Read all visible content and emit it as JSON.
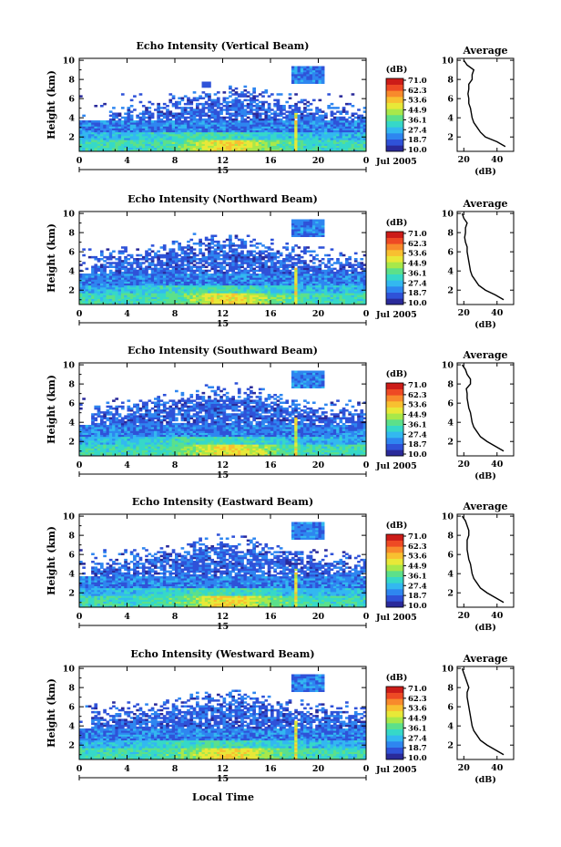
{
  "figure": {
    "xlabel": "Local Time",
    "date_label": "Jul 2005",
    "day_label": "15",
    "side_title": "Average",
    "side_xlabel": "(dB)",
    "colorbar_label": "(dB)",
    "colorbar_ticks": [
      "71.0",
      "62.3",
      "53.6",
      "44.9",
      "36.1",
      "27.4",
      "18.7",
      "10.0"
    ],
    "colormap": [
      "#2a2a9a",
      "#2f52d8",
      "#2e86f0",
      "#33b8f0",
      "#36d8c8",
      "#5ce08a",
      "#a8e84a",
      "#e8e838",
      "#f8c030",
      "#f88a2c",
      "#ee4a24",
      "#cc1c18"
    ]
  },
  "chart_data": [
    {
      "type": "heatmap",
      "title": "Echo Intensity (Vertical Beam)",
      "ylabel": "Height (km)",
      "x_ticks": [
        "0",
        "4",
        "8",
        "12",
        "16",
        "20",
        "0"
      ],
      "y_ticks": [
        "2",
        "4",
        "6",
        "8",
        "10"
      ],
      "xlim": [
        0,
        24
      ],
      "ylim": [
        0.5,
        10.2
      ],
      "zlim": [
        10.0,
        71.0
      ],
      "avg_profile": {
        "x_ticks": [
          "20",
          "40"
        ],
        "xlim": [
          16,
          50
        ],
        "h": [
          1.0,
          1.5,
          2.0,
          2.5,
          3.0,
          3.5,
          4.0,
          4.5,
          5.0,
          5.5,
          6.0,
          6.5,
          7.0,
          7.5,
          8.0,
          8.5,
          9.0,
          9.5,
          10.0
        ],
        "db": [
          45,
          40,
          33,
          30,
          28,
          26,
          25,
          24.5,
          24,
          23,
          23,
          22.5,
          23,
          23,
          25,
          25,
          26,
          22,
          20
        ]
      }
    },
    {
      "type": "heatmap",
      "title": "Echo Intensity (Northward Beam)",
      "ylabel": "Height (km)",
      "x_ticks": [
        "0",
        "4",
        "8",
        "12",
        "16",
        "20",
        "0"
      ],
      "y_ticks": [
        "2",
        "4",
        "6",
        "8",
        "10"
      ],
      "xlim": [
        0,
        24
      ],
      "ylim": [
        0.5,
        10.2
      ],
      "zlim": [
        10.0,
        71.0
      ],
      "avg_profile": {
        "x_ticks": [
          "20",
          "40"
        ],
        "xlim": [
          16,
          50
        ],
        "h": [
          1.0,
          1.5,
          2.0,
          2.5,
          3.0,
          3.5,
          4.0,
          4.5,
          5.0,
          5.5,
          6.0,
          6.5,
          7.0,
          7.5,
          8.0,
          8.5,
          9.0,
          9.5,
          10.0
        ],
        "db": [
          44,
          39,
          33,
          29,
          27,
          25,
          24,
          23.5,
          23,
          22.5,
          22,
          22,
          21,
          20.5,
          21,
          21,
          22,
          20,
          19
        ]
      }
    },
    {
      "type": "heatmap",
      "title": "Echo Intensity (Southward Beam)",
      "ylabel": "Height (km)",
      "x_ticks": [
        "0",
        "4",
        "8",
        "12",
        "16",
        "20",
        "0"
      ],
      "y_ticks": [
        "2",
        "4",
        "6",
        "8",
        "10"
      ],
      "xlim": [
        0,
        24
      ],
      "ylim": [
        0.5,
        10.2
      ],
      "zlim": [
        10.0,
        71.0
      ],
      "avg_profile": {
        "x_ticks": [
          "20",
          "40"
        ],
        "xlim": [
          16,
          50
        ],
        "h": [
          1.0,
          1.5,
          2.0,
          2.5,
          3.0,
          3.5,
          4.0,
          4.5,
          5.0,
          5.5,
          6.0,
          6.5,
          7.0,
          7.5,
          8.0,
          8.5,
          9.0,
          9.5,
          10.0
        ],
        "db": [
          44,
          39,
          34,
          30,
          28,
          26,
          25,
          24.5,
          24,
          23,
          22.5,
          22,
          22,
          21.5,
          24,
          24,
          22,
          21,
          19
        ]
      }
    },
    {
      "type": "heatmap",
      "title": "Echo Intensity (Eastward Beam)",
      "ylabel": "Height (km)",
      "x_ticks": [
        "0",
        "4",
        "8",
        "12",
        "16",
        "20",
        "0"
      ],
      "y_ticks": [
        "2",
        "4",
        "6",
        "8",
        "10"
      ],
      "xlim": [
        0,
        24
      ],
      "ylim": [
        0.5,
        10.2
      ],
      "zlim": [
        10.0,
        71.0
      ],
      "avg_profile": {
        "x_ticks": [
          "20",
          "40"
        ],
        "xlim": [
          16,
          50
        ],
        "h": [
          1.0,
          1.5,
          2.0,
          2.5,
          3.0,
          3.5,
          4.0,
          4.5,
          5.0,
          5.5,
          6.0,
          6.5,
          7.0,
          7.5,
          8.0,
          8.5,
          9.0,
          9.5,
          10.0
        ],
        "db": [
          44,
          39,
          34,
          30,
          28,
          26,
          25,
          24.5,
          24,
          23,
          22.5,
          22,
          22,
          22,
          23,
          23,
          22,
          21,
          19
        ]
      }
    },
    {
      "type": "heatmap",
      "title": "Echo Intensity (Westward Beam)",
      "ylabel": "Height (km)",
      "x_ticks": [
        "0",
        "4",
        "8",
        "12",
        "16",
        "20",
        "0"
      ],
      "y_ticks": [
        "2",
        "4",
        "6",
        "8",
        "10"
      ],
      "xlim": [
        0,
        24
      ],
      "ylim": [
        0.5,
        10.2
      ],
      "zlim": [
        10.0,
        71.0
      ],
      "avg_profile": {
        "x_ticks": [
          "20",
          "40"
        ],
        "xlim": [
          16,
          50
        ],
        "h": [
          1.0,
          1.5,
          2.0,
          2.5,
          3.0,
          3.5,
          4.0,
          4.5,
          5.0,
          5.5,
          6.0,
          6.5,
          7.0,
          7.5,
          8.0,
          8.5,
          9.0,
          9.5,
          10.0
        ],
        "db": [
          44,
          39,
          34,
          30,
          28,
          26,
          25,
          24.5,
          24,
          23.5,
          23,
          22.5,
          22,
          22,
          23,
          22,
          21,
          20,
          19
        ]
      }
    }
  ]
}
